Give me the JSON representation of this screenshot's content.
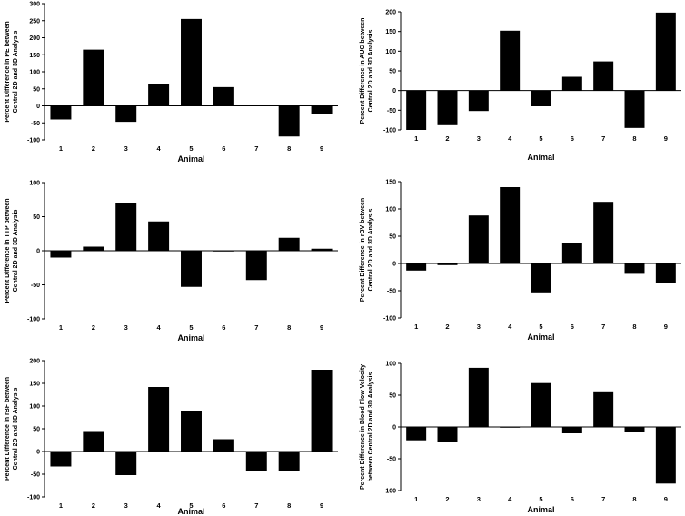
{
  "chart_data": [
    {
      "type": "bar",
      "categories": [
        "1",
        "2",
        "3",
        "4",
        "5",
        "6",
        "7",
        "8",
        "9"
      ],
      "values": [
        -40,
        165,
        -47,
        63,
        255,
        55,
        1,
        -90,
        -25
      ],
      "ylabel_lines": [
        "Percent Difference in PE between",
        "Central 2D and 3D Analysis"
      ],
      "xlabel": "Animal",
      "ylim": [
        -100,
        300
      ],
      "yticks": [
        -100,
        -50,
        0,
        50,
        100,
        150,
        200,
        250,
        300
      ],
      "grid": false
    },
    {
      "type": "bar",
      "categories": [
        "1",
        "2",
        "3",
        "4",
        "5",
        "6",
        "7",
        "8",
        "9"
      ],
      "values": [
        -100,
        -88,
        -52,
        152,
        -40,
        35,
        74,
        -95,
        198
      ],
      "ylabel_lines": [
        "Percent Difference in AUC between",
        "Central 2D and 3D Analysis"
      ],
      "xlabel": "Animal",
      "ylim": [
        -100,
        200
      ],
      "yticks": [
        -100,
        -50,
        0,
        50,
        100,
        150,
        200
      ],
      "grid": false
    },
    {
      "type": "bar",
      "categories": [
        "1",
        "2",
        "3",
        "4",
        "5",
        "6",
        "7",
        "8",
        "9"
      ],
      "values": [
        -10,
        6,
        70,
        43,
        -53,
        -1,
        -43,
        19,
        3
      ],
      "ylabel_lines": [
        "Percent Difference in TTP between",
        "Central 2D and 3D Analysis"
      ],
      "xlabel": "Animal",
      "ylim": [
        -100,
        100
      ],
      "yticks": [
        -100,
        -50,
        0,
        50,
        100
      ],
      "grid": false
    },
    {
      "type": "bar",
      "categories": [
        "1",
        "2",
        "3",
        "4",
        "5",
        "6",
        "7",
        "8",
        "9"
      ],
      "values": [
        -13,
        -3,
        88,
        140,
        -53,
        37,
        113,
        -19,
        -36
      ],
      "ylabel_lines": [
        "Percent Difference in rBV between",
        "Central 2D and 3D Analysis"
      ],
      "xlabel": "Animal",
      "ylim": [
        -100,
        150
      ],
      "yticks": [
        -100,
        -50,
        0,
        50,
        100,
        150
      ],
      "grid": false
    },
    {
      "type": "bar",
      "categories": [
        "1",
        "2",
        "3",
        "4",
        "5",
        "6",
        "7",
        "8",
        "9"
      ],
      "values": [
        -33,
        45,
        -52,
        142,
        90,
        27,
        -42,
        -42,
        180
      ],
      "ylabel_lines": [
        "Percent Difference in rBF between",
        "Central 2D and 3D Analysis"
      ],
      "xlabel": "Animal",
      "ylim": [
        -100,
        200
      ],
      "yticks": [
        -100,
        -50,
        0,
        50,
        100,
        150,
        200
      ],
      "grid": false
    },
    {
      "type": "bar",
      "categories": [
        "1",
        "2",
        "3",
        "4",
        "5",
        "6",
        "7",
        "8",
        "9"
      ],
      "values": [
        -21,
        -23,
        93,
        -1,
        69,
        -10,
        56,
        -8,
        -89
      ],
      "ylabel_lines": [
        "Percent Difference in Blood Flow Velocity",
        "between Central 2D and 3D Analysis"
      ],
      "xlabel": "Animal",
      "ylim": [
        -100,
        100
      ],
      "yticks": [
        -100,
        -50,
        0,
        50,
        100
      ],
      "grid": false
    }
  ]
}
